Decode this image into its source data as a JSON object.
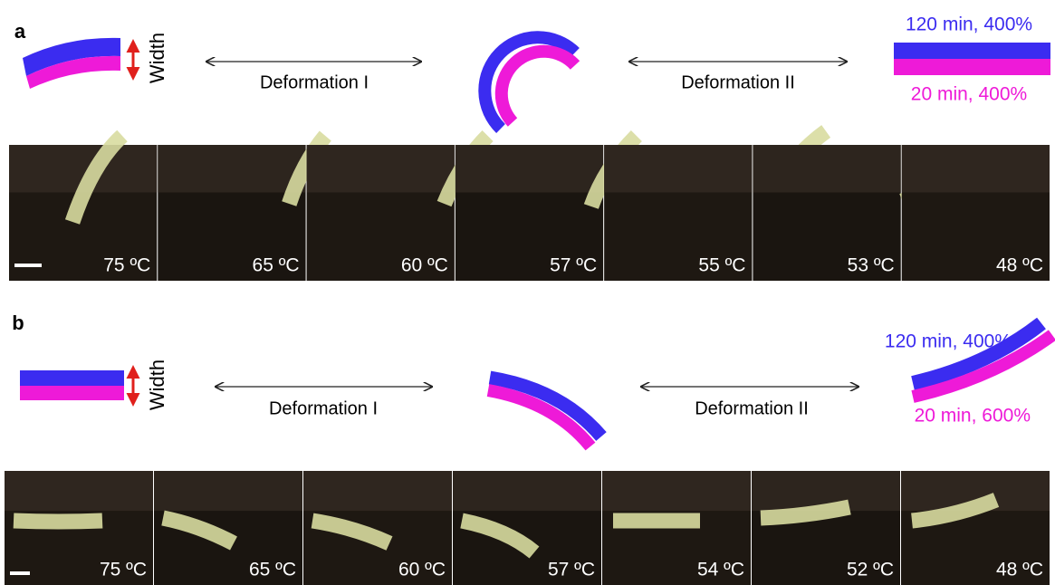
{
  "panels": [
    {
      "label": "a",
      "width_label": "Width",
      "deformation_1": "Deformation I",
      "deformation_2": "Deformation II",
      "top_layer_label": "120 min, 400%",
      "bottom_layer_label": "20 min, 400%",
      "photos": [
        "75 ºC",
        "65 ºC",
        "60 ºC",
        "57 ºC",
        "55 ºC",
        "53 ºC",
        "48 ºC"
      ]
    },
    {
      "label": "b",
      "width_label": "Width",
      "deformation_1": "Deformation I",
      "deformation_2": "Deformation II",
      "top_layer_label": "120 min, 400%",
      "bottom_layer_label": "20 min, 600%",
      "photos": [
        "75 ºC",
        "65 ºC",
        "60 ºC",
        "57 ºC",
        "54 ºC",
        "52 ºC",
        "48 ºC"
      ]
    }
  ]
}
